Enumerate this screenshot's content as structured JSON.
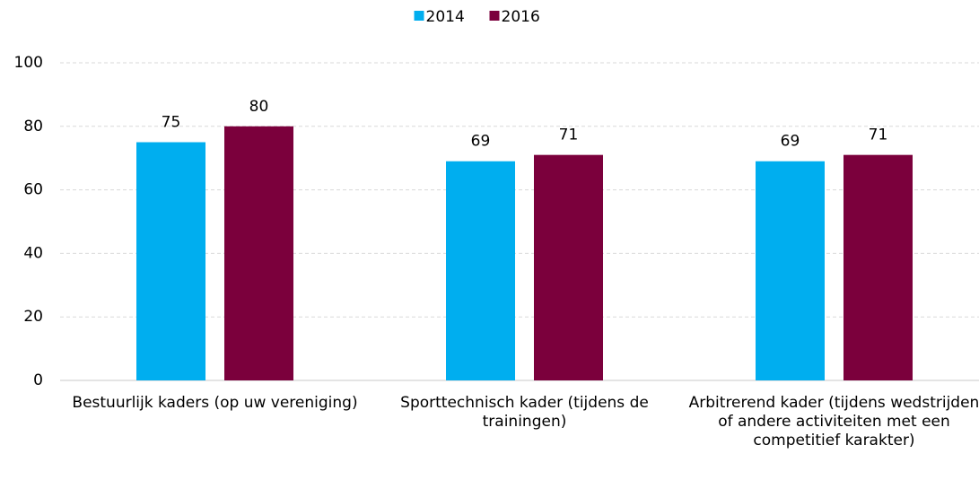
{
  "chart_data": {
    "type": "bar",
    "categories": [
      "Bestuurlijk kaders (op uw vereniging)",
      "Sporttechnisch kader (tijdens de trainingen)",
      "Arbitrerend kader (tijdens wedstrijden of andere activiteiten met een competitief karakter)"
    ],
    "series": [
      {
        "name": "2014",
        "color": "#00aeef",
        "values": [
          75,
          69,
          69
        ]
      },
      {
        "name": "2016",
        "color": "#7b003c",
        "values": [
          80,
          71,
          71
        ]
      }
    ],
    "ylim": [
      0,
      100
    ],
    "yticks": [
      0,
      20,
      40,
      60,
      80,
      100
    ],
    "grid": true,
    "legend": "top"
  }
}
